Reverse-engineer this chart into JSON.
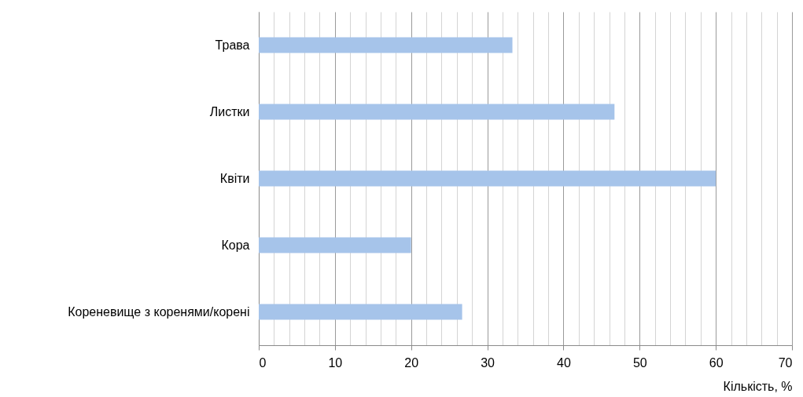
{
  "chart_data": {
    "type": "bar",
    "orientation": "horizontal",
    "xlabel": "Кількість, %",
    "categories": [
      "Трава",
      "Листки",
      "Квіти",
      "Кора",
      "Кореневище з коренями/корені"
    ],
    "values": [
      33.3,
      46.7,
      60,
      20,
      26.7
    ],
    "color": "#a6c4ea",
    "xlim": [
      0,
      70
    ],
    "xticks": [
      0,
      {
        "value": 2,
        "label": null
      },
      {
        "value": 4,
        "label": null
      },
      {
        "value": 6,
        "label": null
      },
      {
        "value": 8,
        "label": null
      },
      10,
      {
        "value": 12,
        "label": null
      },
      {
        "value": 14,
        "label": null
      },
      {
        "value": 16,
        "label": null
      },
      {
        "value": 18,
        "label": null
      },
      20,
      {
        "value": 22,
        "label": null
      },
      {
        "value": 24,
        "label": null
      },
      {
        "value": 26,
        "label": null
      },
      {
        "value": 28,
        "label": null
      },
      30,
      {
        "value": 32,
        "label": null
      },
      {
        "value": 34,
        "label": null
      },
      {
        "value": 36,
        "label": null
      },
      {
        "value": 38,
        "label": null
      },
      40,
      {
        "value": 42,
        "label": null
      },
      {
        "value": 44,
        "label": null
      },
      {
        "value": 46,
        "label": null
      },
      {
        "value": 48,
        "label": null
      },
      50,
      {
        "value": 52,
        "label": null
      },
      {
        "value": 54,
        "label": null
      },
      {
        "value": 56,
        "label": null
      },
      {
        "value": 58,
        "label": null
      },
      60,
      {
        "value": 62,
        "label": null
      },
      {
        "value": 64,
        "label": null
      },
      {
        "value": 66,
        "label": null
      },
      {
        "value": 68,
        "label": null
      },
      70
    ],
    "grid": "x"
  }
}
